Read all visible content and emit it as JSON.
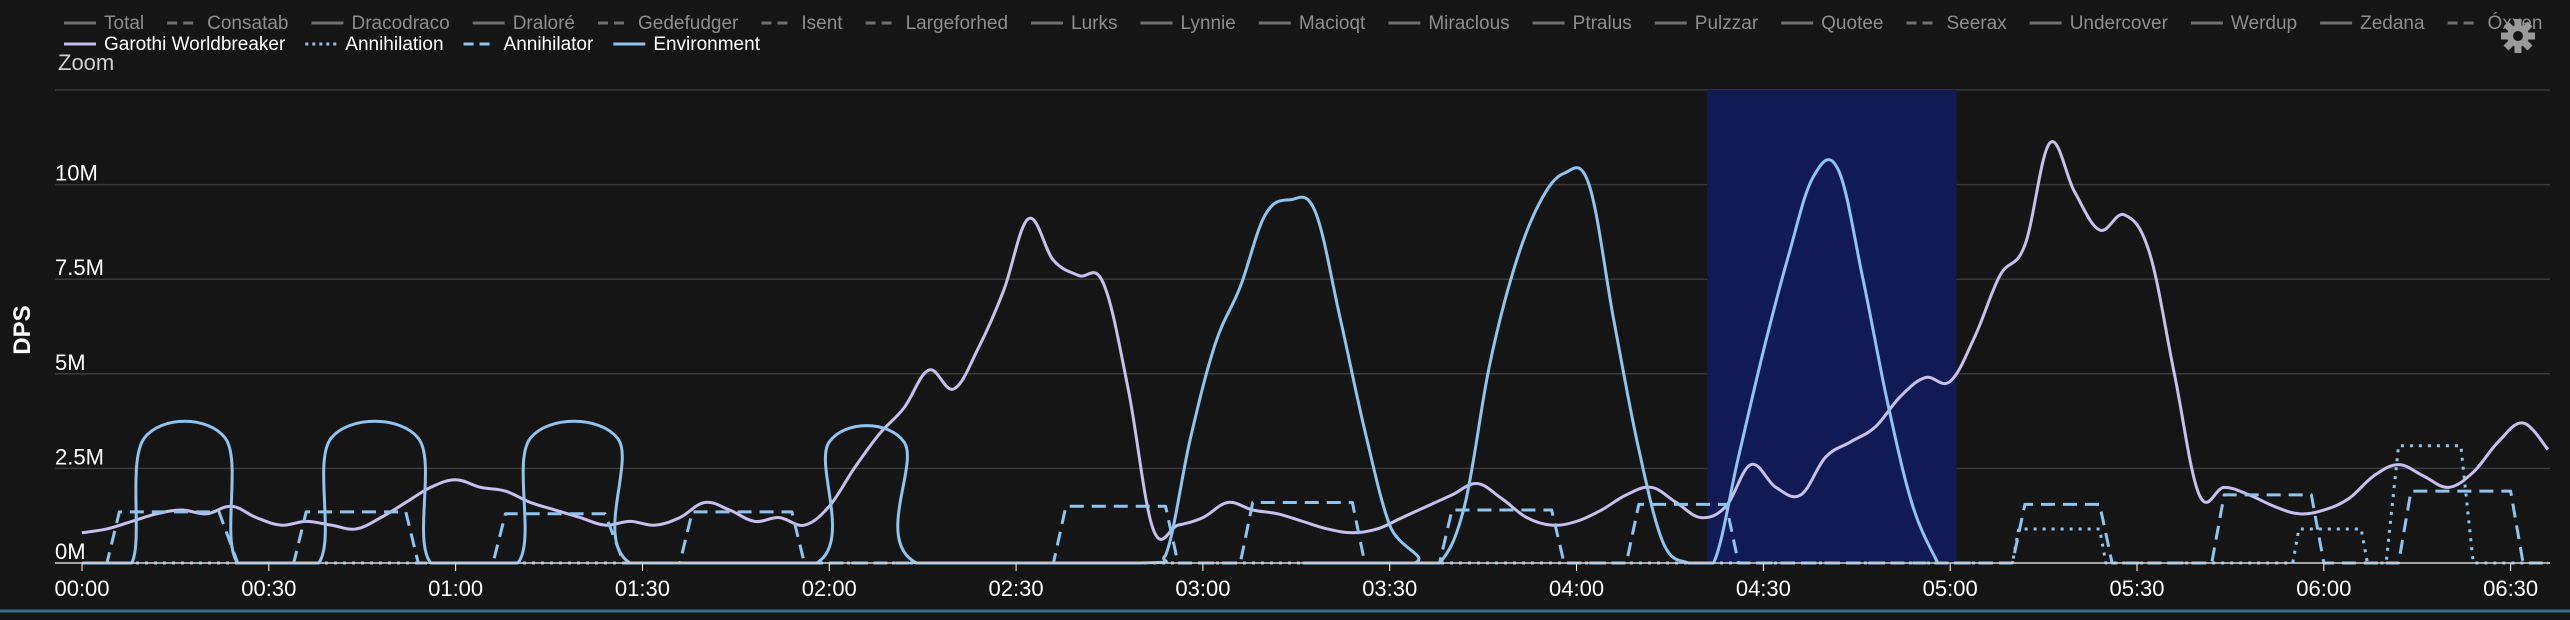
{
  "zoom_label": "Zoom",
  "settings_icon": "gear-icon",
  "chart_data": {
    "type": "line",
    "xlabel": "",
    "ylabel": "DPS",
    "x_ticks": [
      "00:00",
      "00:30",
      "01:00",
      "01:30",
      "02:00",
      "02:30",
      "03:00",
      "03:30",
      "04:00",
      "04:30",
      "05:00",
      "05:30",
      "06:00",
      "06:30"
    ],
    "xlim_seconds": [
      0,
      396
    ],
    "ylim": [
      0,
      12500000
    ],
    "y_ticks": [
      {
        "value": 0,
        "label": "0M"
      },
      {
        "value": 2500000,
        "label": "2.5M"
      },
      {
        "value": 5000000,
        "label": "5M"
      },
      {
        "value": 7500000,
        "label": "7.5M"
      },
      {
        "value": 10000000,
        "label": "10M"
      }
    ],
    "highlight_range_seconds": [
      261,
      301
    ],
    "grid": true,
    "legend_position": "top",
    "legend_inactive": [
      {
        "name": "Total",
        "style": "solid"
      },
      {
        "name": "Consatab",
        "style": "dashed"
      },
      {
        "name": "Dracodraco",
        "style": "solid"
      },
      {
        "name": "Draloré",
        "style": "solid"
      },
      {
        "name": "Gedefudger",
        "style": "dashed"
      },
      {
        "name": "Isent",
        "style": "dashed"
      },
      {
        "name": "Largeforhed",
        "style": "dashed"
      },
      {
        "name": "Lurks",
        "style": "solid"
      },
      {
        "name": "Lynnie",
        "style": "solid"
      },
      {
        "name": "Macioqt",
        "style": "solid"
      },
      {
        "name": "Miraclous",
        "style": "solid"
      },
      {
        "name": "Ptralus",
        "style": "solid"
      },
      {
        "name": "Pulzzar",
        "style": "solid"
      },
      {
        "name": "Quotee",
        "style": "solid"
      },
      {
        "name": "Seerax",
        "style": "dashed"
      },
      {
        "name": "Undercover",
        "style": "solid"
      },
      {
        "name": "Werdup",
        "style": "solid"
      },
      {
        "name": "Zedana",
        "style": "solid"
      },
      {
        "name": "Óxxen",
        "style": "dashed"
      }
    ],
    "series": [
      {
        "name": "Garothi Worldbreaker",
        "color": "#c8c0ec",
        "style": "solid",
        "points": [
          [
            0,
            0.8
          ],
          [
            4,
            0.9
          ],
          [
            8,
            1.1
          ],
          [
            12,
            1.3
          ],
          [
            16,
            1.4
          ],
          [
            20,
            1.3
          ],
          [
            24,
            1.5
          ],
          [
            28,
            1.2
          ],
          [
            32,
            1.0
          ],
          [
            36,
            1.1
          ],
          [
            40,
            1.0
          ],
          [
            44,
            0.9
          ],
          [
            48,
            1.2
          ],
          [
            52,
            1.6
          ],
          [
            56,
            2.0
          ],
          [
            60,
            2.2
          ],
          [
            64,
            2.0
          ],
          [
            68,
            1.9
          ],
          [
            72,
            1.6
          ],
          [
            76,
            1.4
          ],
          [
            80,
            1.2
          ],
          [
            84,
            1.0
          ],
          [
            88,
            1.1
          ],
          [
            92,
            1.0
          ],
          [
            96,
            1.2
          ],
          [
            100,
            1.6
          ],
          [
            104,
            1.4
          ],
          [
            108,
            1.1
          ],
          [
            112,
            1.2
          ],
          [
            116,
            1.0
          ],
          [
            120,
            1.5
          ],
          [
            124,
            2.5
          ],
          [
            128,
            3.4
          ],
          [
            132,
            4.1
          ],
          [
            136,
            5.1
          ],
          [
            140,
            4.6
          ],
          [
            144,
            5.7
          ],
          [
            148,
            7.2
          ],
          [
            152,
            9.1
          ],
          [
            156,
            8.0
          ],
          [
            160,
            7.6
          ],
          [
            164,
            7.4
          ],
          [
            168,
            4.6
          ],
          [
            172,
            0.9
          ],
          [
            176,
            1.0
          ],
          [
            180,
            1.2
          ],
          [
            184,
            1.6
          ],
          [
            188,
            1.4
          ],
          [
            192,
            1.3
          ],
          [
            196,
            1.1
          ],
          [
            200,
            0.9
          ],
          [
            204,
            0.8
          ],
          [
            208,
            0.9
          ],
          [
            212,
            1.2
          ],
          [
            216,
            1.5
          ],
          [
            220,
            1.8
          ],
          [
            224,
            2.1
          ],
          [
            228,
            1.7
          ],
          [
            232,
            1.2
          ],
          [
            236,
            1.0
          ],
          [
            240,
            1.1
          ],
          [
            244,
            1.4
          ],
          [
            248,
            1.8
          ],
          [
            252,
            2.0
          ],
          [
            256,
            1.6
          ],
          [
            260,
            1.2
          ],
          [
            264,
            1.5
          ],
          [
            268,
            2.6
          ],
          [
            272,
            2.0
          ],
          [
            276,
            1.8
          ],
          [
            280,
            2.8
          ],
          [
            284,
            3.2
          ],
          [
            288,
            3.6
          ],
          [
            292,
            4.4
          ],
          [
            296,
            4.9
          ],
          [
            300,
            4.8
          ],
          [
            304,
            6.0
          ],
          [
            308,
            7.6
          ],
          [
            312,
            8.4
          ],
          [
            316,
            11.1
          ],
          [
            320,
            9.8
          ],
          [
            324,
            8.8
          ],
          [
            328,
            9.2
          ],
          [
            332,
            8.2
          ],
          [
            336,
            5.0
          ],
          [
            340,
            1.8
          ],
          [
            344,
            2.0
          ],
          [
            348,
            1.8
          ],
          [
            352,
            1.5
          ],
          [
            356,
            1.3
          ],
          [
            360,
            1.4
          ],
          [
            364,
            1.7
          ],
          [
            368,
            2.3
          ],
          [
            372,
            2.6
          ],
          [
            376,
            2.3
          ],
          [
            380,
            2.0
          ],
          [
            384,
            2.4
          ],
          [
            388,
            3.2
          ],
          [
            392,
            3.7
          ],
          [
            396,
            3.0
          ]
        ]
      },
      {
        "name": "Annihilation",
        "color": "#8fc4ef",
        "style": "dotted",
        "points": [
          [
            0,
            0
          ],
          [
            310,
            0
          ],
          [
            311,
            0.9
          ],
          [
            324,
            0.9
          ],
          [
            325,
            0
          ],
          [
            355,
            0
          ],
          [
            356,
            0.9
          ],
          [
            366,
            0.9
          ],
          [
            367,
            0
          ],
          [
            370,
            0
          ],
          [
            372,
            3.1
          ],
          [
            382,
            3.1
          ],
          [
            384,
            0
          ],
          [
            396,
            0
          ]
        ]
      },
      {
        "name": "Annihilator",
        "color": "#8fc4ef",
        "style": "dashed",
        "points": [
          [
            0,
            0
          ],
          [
            4,
            0
          ],
          [
            6,
            1.35
          ],
          [
            22,
            1.35
          ],
          [
            25,
            0
          ],
          [
            34,
            0
          ],
          [
            36,
            1.35
          ],
          [
            52,
            1.35
          ],
          [
            54,
            0
          ],
          [
            66,
            0
          ],
          [
            68,
            1.3
          ],
          [
            84,
            1.3
          ],
          [
            87,
            0
          ],
          [
            96,
            0
          ],
          [
            98,
            1.35
          ],
          [
            114,
            1.35
          ],
          [
            116,
            0
          ],
          [
            156,
            0
          ],
          [
            158,
            1.5
          ],
          [
            174,
            1.5
          ],
          [
            176,
            0
          ],
          [
            186,
            0
          ],
          [
            188,
            1.6
          ],
          [
            204,
            1.6
          ],
          [
            206,
            0
          ],
          [
            218,
            0
          ],
          [
            220,
            1.4
          ],
          [
            236,
            1.4
          ],
          [
            238,
            0
          ],
          [
            248,
            0
          ],
          [
            250,
            1.55
          ],
          [
            264,
            1.55
          ],
          [
            266,
            0
          ],
          [
            310,
            0
          ],
          [
            312,
            1.55
          ],
          [
            324,
            1.55
          ],
          [
            326,
            0
          ],
          [
            342,
            0
          ],
          [
            344,
            1.8
          ],
          [
            358,
            1.8
          ],
          [
            360,
            0
          ],
          [
            372,
            0
          ],
          [
            374,
            1.9
          ],
          [
            390,
            1.9
          ],
          [
            392,
            0
          ],
          [
            396,
            0
          ]
        ]
      },
      {
        "name": "Environment",
        "color": "#8fc4ef",
        "style": "solid",
        "points": [
          [
            0,
            0
          ],
          [
            8,
            0
          ],
          [
            10,
            3.3
          ],
          [
            23,
            3.3
          ],
          [
            25,
            0
          ],
          [
            38,
            0
          ],
          [
            40,
            3.3
          ],
          [
            54,
            3.3
          ],
          [
            56,
            0
          ],
          [
            70,
            0
          ],
          [
            72,
            3.3
          ],
          [
            86,
            3.3
          ],
          [
            88,
            0
          ],
          [
            118,
            0
          ],
          [
            120,
            3.2
          ],
          [
            132,
            3.2
          ],
          [
            134,
            0
          ],
          [
            170,
            0
          ],
          [
            174,
            0.2
          ],
          [
            178,
            3.3
          ],
          [
            182,
            5.8
          ],
          [
            186,
            7.3
          ],
          [
            190,
            9.2
          ],
          [
            194,
            9.6
          ],
          [
            198,
            9.3
          ],
          [
            202,
            6.5
          ],
          [
            206,
            3.5
          ],
          [
            210,
            1.0
          ],
          [
            214,
            0
          ],
          [
            196,
            0
          ],
          [
            214,
            0
          ],
          [
            218,
            0
          ],
          [
            222,
            1.5
          ],
          [
            226,
            5.2
          ],
          [
            230,
            7.8
          ],
          [
            234,
            9.5
          ],
          [
            238,
            10.3
          ],
          [
            242,
            10.0
          ],
          [
            246,
            6.4
          ],
          [
            250,
            3.0
          ],
          [
            254,
            0.5
          ],
          [
            258,
            0
          ],
          [
            262,
            0
          ],
          [
            266,
            2.8
          ],
          [
            270,
            5.6
          ],
          [
            274,
            8.1
          ],
          [
            278,
            10.2
          ],
          [
            282,
            10.4
          ],
          [
            286,
            7.5
          ],
          [
            290,
            4.2
          ],
          [
            294,
            1.5
          ],
          [
            298,
            0
          ]
        ]
      }
    ]
  }
}
